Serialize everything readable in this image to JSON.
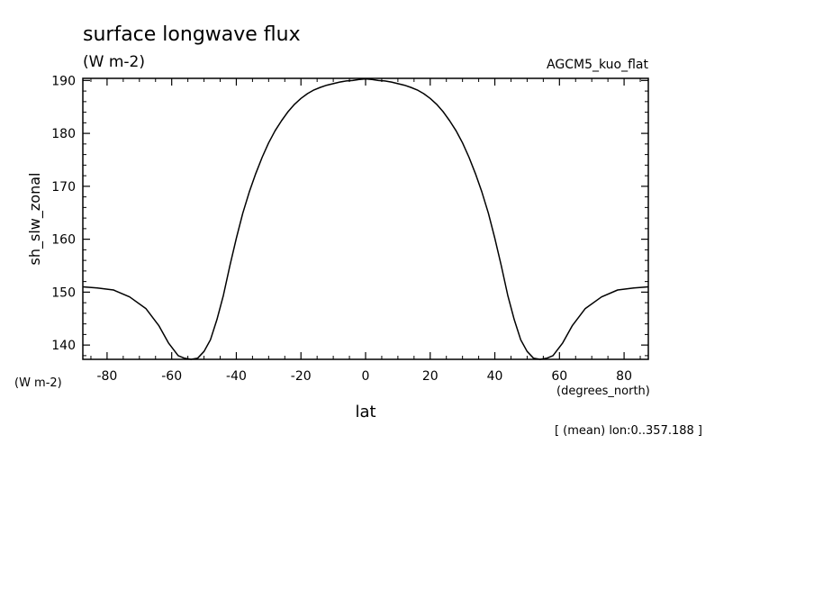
{
  "chart_data": {
    "type": "line",
    "title": "surface longwave flux",
    "subtitle": "(W m-2)",
    "run_label": "AGCM5_kuo_flat",
    "xlabel": "lat",
    "xunits": "(degrees_north)",
    "ylabel": "sh_slw_zonal",
    "yunits": "(W m-2)",
    "footnote": "[ (mean) lon:0..357.188 ]",
    "xlim": [
      -87.5,
      87.5
    ],
    "ylim": [
      137.3,
      190.4
    ],
    "x_ticks": [
      -80,
      -60,
      -40,
      -20,
      0,
      20,
      40,
      60,
      80
    ],
    "x_tick_labels": [
      "-80",
      "-60",
      "-40",
      "-20",
      "0",
      "20",
      "40",
      "60",
      "80"
    ],
    "y_ticks": [
      140,
      150,
      160,
      170,
      180,
      190
    ],
    "y_tick_labels": [
      "140",
      "150",
      "160",
      "170",
      "180",
      "190"
    ],
    "grid": false,
    "line_color": "#000000",
    "series": [
      {
        "x": [
          -87.5,
          -83,
          -78,
          -73,
          -68,
          -64,
          -61,
          -58,
          -56,
          -54,
          -52,
          -50,
          -48,
          -46,
          -44,
          -42,
          -40,
          -38,
          -36,
          -34,
          -32,
          -30,
          -28,
          -26,
          -24,
          -22,
          -20,
          -18,
          -16,
          -14,
          -12,
          -10,
          -8,
          -6,
          -4,
          -2,
          0,
          2,
          4,
          6,
          8,
          10,
          12,
          14,
          16,
          18,
          20,
          22,
          24,
          26,
          28,
          30,
          32,
          34,
          36,
          38,
          40,
          42,
          44,
          46,
          48,
          50,
          52,
          54,
          56,
          58,
          61,
          64,
          68,
          73,
          78,
          83,
          87.5
        ],
        "y": [
          151.0,
          150.8,
          150.4,
          149.1,
          146.9,
          143.7,
          140.4,
          138.0,
          137.5,
          137.3,
          137.5,
          138.8,
          141.0,
          144.8,
          149.4,
          155.0,
          160.2,
          164.9,
          168.9,
          172.4,
          175.5,
          178.2,
          180.5,
          182.4,
          184.1,
          185.5,
          186.6,
          187.5,
          188.2,
          188.7,
          189.1,
          189.4,
          189.7,
          189.9,
          190.0,
          190.2,
          190.3,
          190.2,
          190.0,
          189.9,
          189.7,
          189.4,
          189.1,
          188.7,
          188.2,
          187.5,
          186.6,
          185.5,
          184.1,
          182.4,
          180.5,
          178.2,
          175.5,
          172.4,
          168.9,
          164.9,
          160.2,
          155.0,
          149.4,
          144.8,
          141.0,
          138.8,
          137.5,
          137.3,
          137.5,
          138.0,
          140.4,
          143.7,
          146.9,
          149.1,
          150.4,
          150.8,
          151.0
        ]
      }
    ]
  }
}
